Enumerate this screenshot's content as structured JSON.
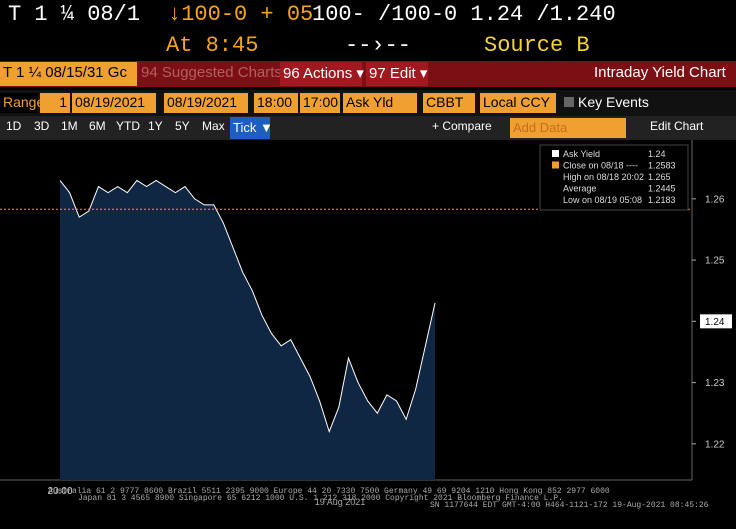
{
  "header": {
    "ticker": "T 1 ¼  08/1",
    "change": "↓100-0 + 05",
    "quote": "100-  /100-0 1.24  /1.240",
    "time": "At 8:45",
    "arrow": "--›--",
    "source": "Source B"
  },
  "toolbar": {
    "security": "T 1 ¼ 08/15/31 Gc",
    "suggested": "94 Suggested Charts",
    "actions": "96 Actions ▾",
    "edit": "97 Edit ▾",
    "title": "Intraday Yield Chart"
  },
  "range_bar": {
    "range": "Range",
    "period": "1",
    "start_date": "08/19/2021",
    "end_date": "08/19/2021",
    "start_time": "18:00",
    "end_time": "17:00",
    "field": "Ask Yld",
    "source": "CBBT",
    "currency": "Local CCY",
    "events": "Key Events"
  },
  "period_bar": {
    "buttons": [
      "1D",
      "3D",
      "1M",
      "6M",
      "YTD",
      "1Y",
      "5Y",
      "Max"
    ],
    "active": "Tick ▼",
    "compare": "+ Compare",
    "add_data": "Add Data",
    "edit_chart": "Edit Chart"
  },
  "chart_data": {
    "type": "area",
    "color": "#ffffff",
    "fill": "#0f2743",
    "categories": [
      "20:00",
      null,
      null,
      null,
      null,
      null,
      null,
      null,
      null,
      null,
      null,
      null,
      null,
      null,
      null,
      null,
      null,
      null,
      null,
      null,
      null,
      null,
      null,
      null,
      null,
      null,
      null,
      null,
      null,
      null,
      null,
      null,
      null,
      null,
      null,
      null,
      null,
      null,
      null,
      null
    ],
    "values": [
      1.263,
      1.261,
      1.257,
      1.258,
      1.262,
      1.261,
      1.262,
      1.261,
      1.263,
      1.262,
      1.263,
      1.262,
      1.261,
      1.262,
      1.26,
      1.259,
      1.259,
      1.256,
      1.252,
      1.248,
      1.245,
      1.241,
      1.238,
      1.236,
      1.237,
      1.234,
      1.231,
      1.227,
      1.222,
      1.226,
      1.234,
      1.23,
      1.227,
      1.225,
      1.228,
      1.227,
      1.224,
      1.229,
      1.236,
      1.243
    ],
    "x_date_label": "19 Aug 2021",
    "ylim": [
      1.2141,
      1.2696
    ],
    "yticks": [
      1.22,
      1.23,
      1.24,
      1.25,
      1.26
    ],
    "legend": [
      {
        "label": "Ask Yield",
        "value": 1.24
      },
      {
        "label": "Close on 08/18 ----",
        "value": 1.2583
      },
      {
        "label": "High on 08/18 20:02",
        "value": 1.265
      },
      {
        "label": "Average",
        "value": 1.2445
      },
      {
        "label": "Low on 08/19 05:08",
        "value": 1.2183
      }
    ]
  },
  "footer": {
    "line1": "Australia 61 2 9777 8600 Brazil 5511 2395 9000 Europe 44 20 7330 7500 Germany 49 69 9204 1210 Hong Kong 852 2977 6000",
    "line2": "Japan 81 3 4565 8900 Singapore 65 6212 1000 U.S. 1 212 318 2000 Copyright 2021 Bloomberg Finance L.P.",
    "line3": "SN 1177644 EDT GMT-4:00 H464-1121-172 19-Aug-2021 08:45:26"
  }
}
